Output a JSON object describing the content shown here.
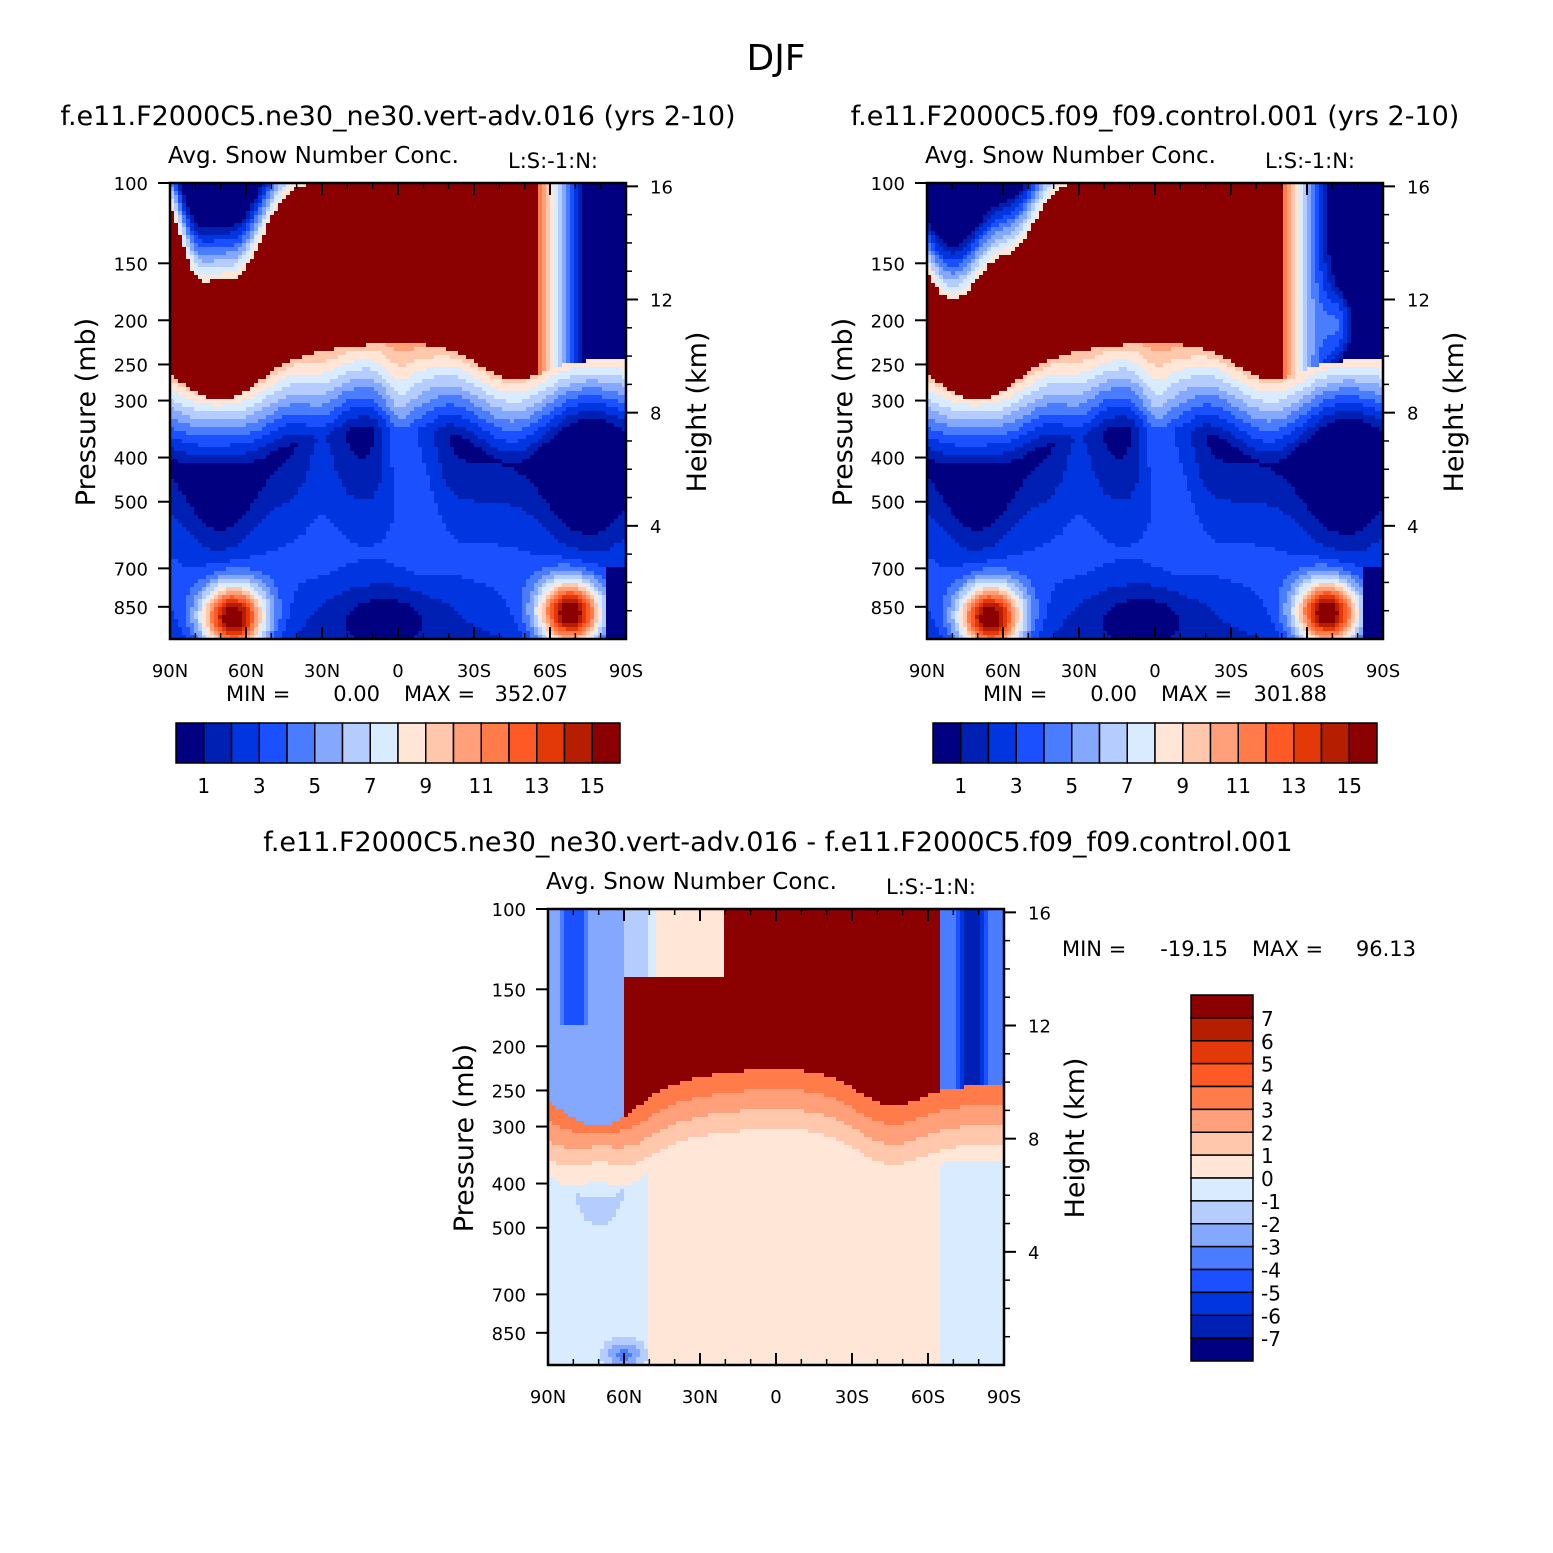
{
  "suptitle": "DJF",
  "colors": {
    "seq": [
      "#000080",
      "#0020b4",
      "#0035e0",
      "#1a50ff",
      "#4a7cff",
      "#85a8ff",
      "#b5ccff",
      "#d8ebff",
      "#ffe6d6",
      "#ffc7ab",
      "#ffa07a",
      "#ff7b4a",
      "#ff5a26",
      "#e33808",
      "#b51e00",
      "#8b0000"
    ],
    "diff": [
      "#000080",
      "#0020b4",
      "#0035e0",
      "#1a50ff",
      "#4a7cff",
      "#85a8ff",
      "#b5ccff",
      "#d8ebff",
      "#ffe6d6",
      "#ffc7ab",
      "#ffa07a",
      "#ff7b4a",
      "#ff5a26",
      "#e33808",
      "#b51e00",
      "#8b0000"
    ]
  },
  "chart_data": [
    {
      "type": "contour",
      "title": "f.e11.F2000C5.ne30_ne30.vert-adv.016 (yrs 2-10)",
      "subtitle": "Avg. Snow Number Conc.",
      "units": "L:S:-1:N:",
      "ylabel": "Pressure (mb)",
      "ylabel_right": "Height (km)",
      "x_ticks": [
        "90N",
        "60N",
        "30N",
        "0",
        "30S",
        "60S",
        "90S"
      ],
      "x_range": [
        90,
        -90
      ],
      "y_ticks": [
        100,
        150,
        200,
        250,
        300,
        400,
        500,
        700,
        850
      ],
      "y_range": [
        100,
        1000
      ],
      "height_ticks": [
        16,
        12,
        8,
        4
      ],
      "min_label": "MIN =",
      "min_value": "0.00",
      "max_label": "MAX =",
      "max_value": "352.07",
      "colorbar_labels": [
        "1",
        "3",
        "5",
        "7",
        "9",
        "11",
        "13",
        "15"
      ],
      "cap_level": 11.5
    },
    {
      "type": "contour",
      "title": "f.e11.F2000C5.f09_f09.control.001 (yrs 2-10)",
      "subtitle": "Avg. Snow Number Conc.",
      "units": "L:S:-1:N:",
      "ylabel": "Pressure (mb)",
      "ylabel_right": "Height (km)",
      "x_ticks": [
        "90N",
        "60N",
        "30N",
        "0",
        "30S",
        "60S",
        "90S"
      ],
      "x_range": [
        90,
        -90
      ],
      "y_ticks": [
        100,
        150,
        200,
        250,
        300,
        400,
        500,
        700,
        850
      ],
      "y_range": [
        100,
        1000
      ],
      "height_ticks": [
        16,
        12,
        8,
        4
      ],
      "min_label": "MIN =",
      "min_value": "0.00",
      "max_label": "MAX =",
      "max_value": "301.88",
      "colorbar_labels": [
        "1",
        "3",
        "5",
        "7",
        "9",
        "11",
        "13",
        "15"
      ],
      "cap_level": 11.5
    },
    {
      "type": "contour",
      "title": "f.e11.F2000C5.ne30_ne30.vert-adv.016 - f.e11.F2000C5.f09_f09.control.001",
      "subtitle": "Avg. Snow Number Conc.",
      "units": "L:S:-1:N:",
      "ylabel": "Pressure (mb)",
      "ylabel_right": "Height (km)",
      "x_ticks": [
        "90N",
        "60N",
        "30N",
        "0",
        "30S",
        "60S",
        "90S"
      ],
      "x_range": [
        90,
        -90
      ],
      "y_ticks": [
        100,
        150,
        200,
        250,
        300,
        400,
        500,
        700,
        850
      ],
      "y_range": [
        100,
        1000
      ],
      "height_ticks": [
        16,
        12,
        8,
        4
      ],
      "min_label": "MIN =",
      "min_value": "-19.15",
      "max_label": "MAX =",
      "max_value": "96.13",
      "colorbar_labels": [
        "7",
        "6",
        "5",
        "4",
        "3",
        "2",
        "1",
        "0",
        "-1",
        "-2",
        "-3",
        "-4",
        "-5",
        "-6",
        "-7"
      ]
    }
  ]
}
